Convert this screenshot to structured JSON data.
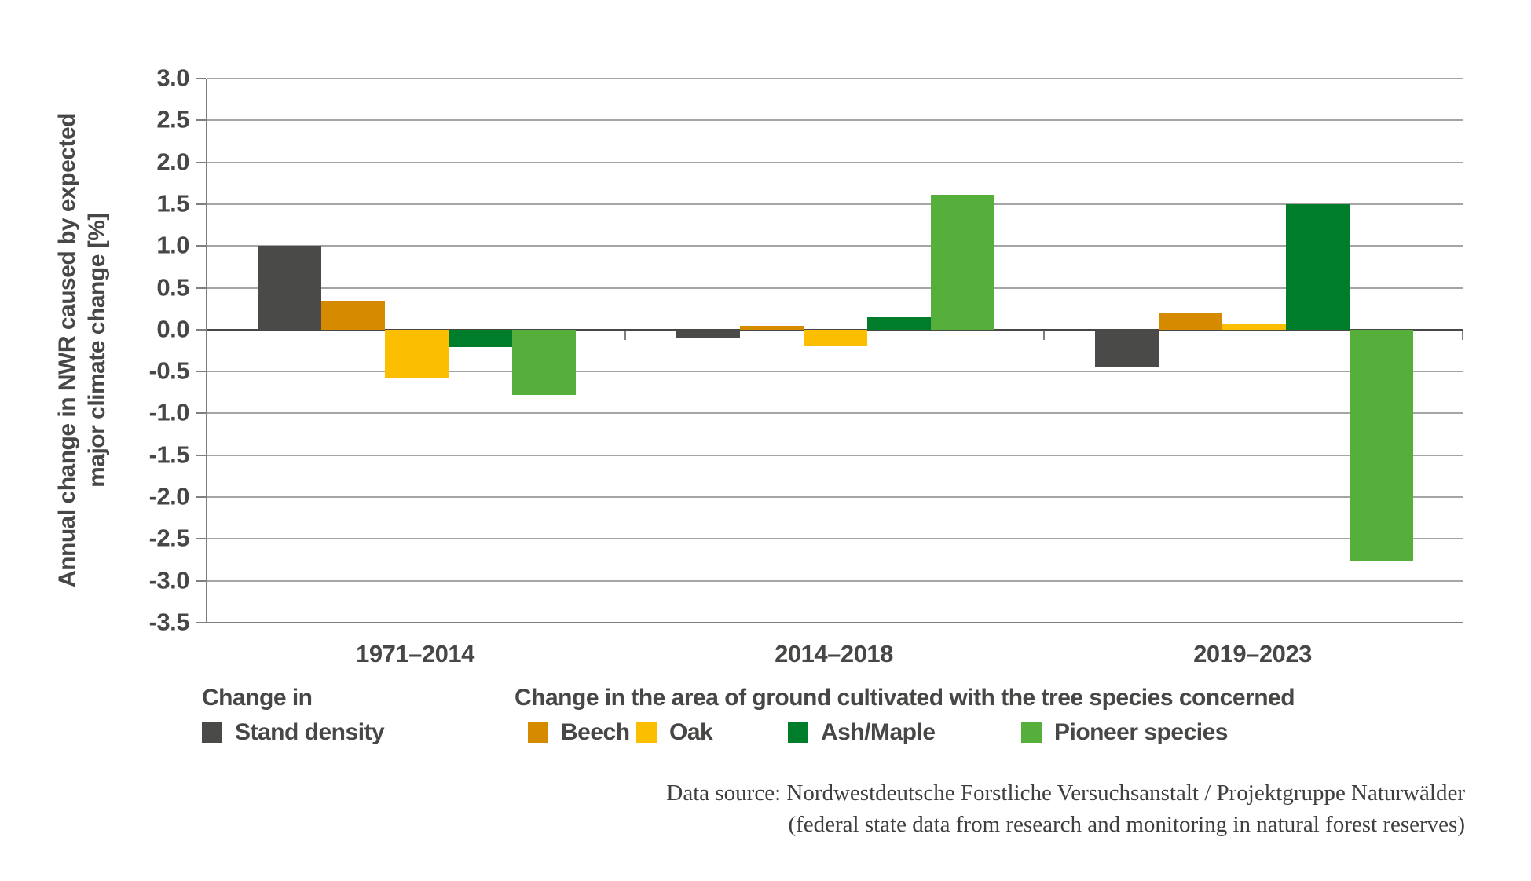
{
  "chart_data": {
    "type": "bar",
    "title": "",
    "categories": [
      "1971–2014",
      "2014–2018",
      "2019–2023"
    ],
    "series": [
      {
        "name": "Stand density",
        "color": "#4A4A49",
        "values": [
          1.0,
          -0.1,
          -0.45
        ]
      },
      {
        "name": "Beech",
        "color": "#D68A00",
        "values": [
          0.35,
          0.05,
          0.2
        ]
      },
      {
        "name": "Oak",
        "color": "#FBBE00",
        "values": [
          -0.58,
          -0.2,
          0.07
        ]
      },
      {
        "name": "Ash/Maple",
        "color": "#007D2B",
        "values": [
          -0.21,
          0.15,
          1.5
        ]
      },
      {
        "name": "Pioneer species",
        "color": "#57AF3B",
        "values": [
          -0.78,
          1.61,
          -2.76
        ]
      }
    ],
    "ylabel_line1": "Annual change in NWR caused by expected",
    "ylabel_line2": "major climate change [%]",
    "xlabel": "",
    "ylim": [
      -3.5,
      3.0
    ],
    "ytick_step": 0.5,
    "grid": true,
    "legend_position": "bottom",
    "legend": {
      "stand_header": "Change in",
      "species_header": "Change in the area of ground cultivated with the tree species concerned"
    },
    "source_line1": "Data source: Nordwestdeutsche Forstliche Versuchsanstalt / Projektgruppe Naturwälder",
    "source_line2": "(federal state data from research and monitoring in natural forest reserves)"
  },
  "colors": {
    "text": "#474746",
    "gridline": "#A5A5A4",
    "axis": "#7F7F7E",
    "zero_line": "#474746",
    "background": "#FFFFFF"
  }
}
